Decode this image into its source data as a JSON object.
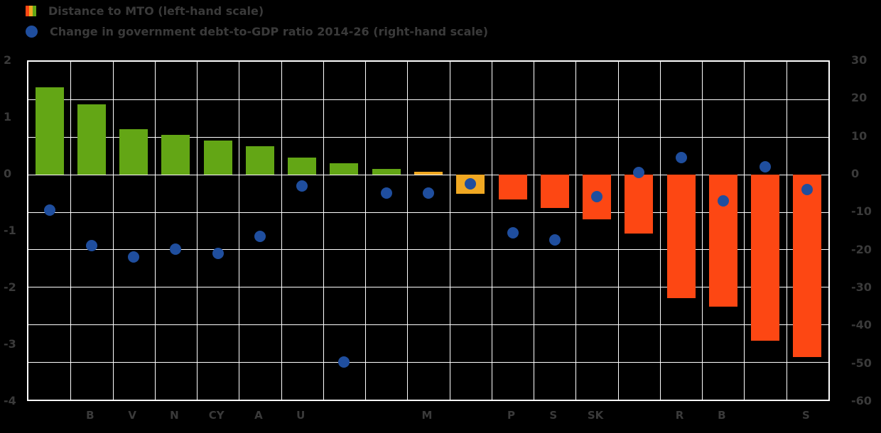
{
  "colors": {
    "background": "#000000",
    "text": "#3a3a3a",
    "grid": "#ffffff",
    "bar_positive": "#63a615",
    "bar_warning": "#f0a822",
    "bar_negative": "#fd4713",
    "dot": "#1f4e9e"
  },
  "legend": {
    "items": [
      {
        "id": "bars",
        "label": "Distance to MTO (left-hand scale)"
      },
      {
        "id": "dots",
        "label": "Change in government debt-to-GDP ratio 2014-26 (right-hand scale)"
      }
    ]
  },
  "chart_data": {
    "type": "bar",
    "combo": "bar+scatter",
    "title": "",
    "categories": [
      "",
      "B",
      "V",
      "N",
      "CY",
      "A",
      "U",
      "",
      "",
      "M",
      "",
      "P",
      "S",
      "SK",
      "",
      "R",
      "B",
      "",
      "S"
    ],
    "series": [
      {
        "name": "Distance to MTO",
        "type": "bar",
        "axis": "left",
        "values": [
          1.55,
          1.25,
          0.8,
          0.7,
          0.6,
          0.5,
          0.3,
          0.2,
          0.1,
          0.05,
          -0.35,
          -0.45,
          -0.6,
          -0.8,
          -1.05,
          -2.2,
          -2.35,
          -2.95,
          -3.25
        ],
        "bar_colors": [
          "green",
          "green",
          "green",
          "green",
          "green",
          "green",
          "green",
          "green",
          "green",
          "yellow",
          "yellow",
          "red",
          "red",
          "red",
          "red",
          "red",
          "red",
          "red",
          "red"
        ]
      },
      {
        "name": "Change in government debt-to-GDP ratio 2014-26",
        "type": "scatter",
        "axis": "right",
        "values": [
          -9.5,
          -19,
          -22,
          -20,
          -21,
          -16.5,
          -3,
          -50,
          -5,
          -5,
          -2.5,
          -15.5,
          -17.5,
          -6,
          0.5,
          4.5,
          -7,
          2,
          -4
        ]
      }
    ],
    "left_axis": {
      "min": -4,
      "max": 2,
      "ticks": [
        2,
        1,
        0,
        -1,
        -2,
        -3,
        -4
      ]
    },
    "right_axis": {
      "min": -60,
      "max": 30,
      "ticks": [
        30,
        20,
        10,
        0,
        -10,
        -20,
        -30,
        -40,
        -50,
        -60
      ]
    },
    "grid": true,
    "legend_position": "top-left"
  }
}
